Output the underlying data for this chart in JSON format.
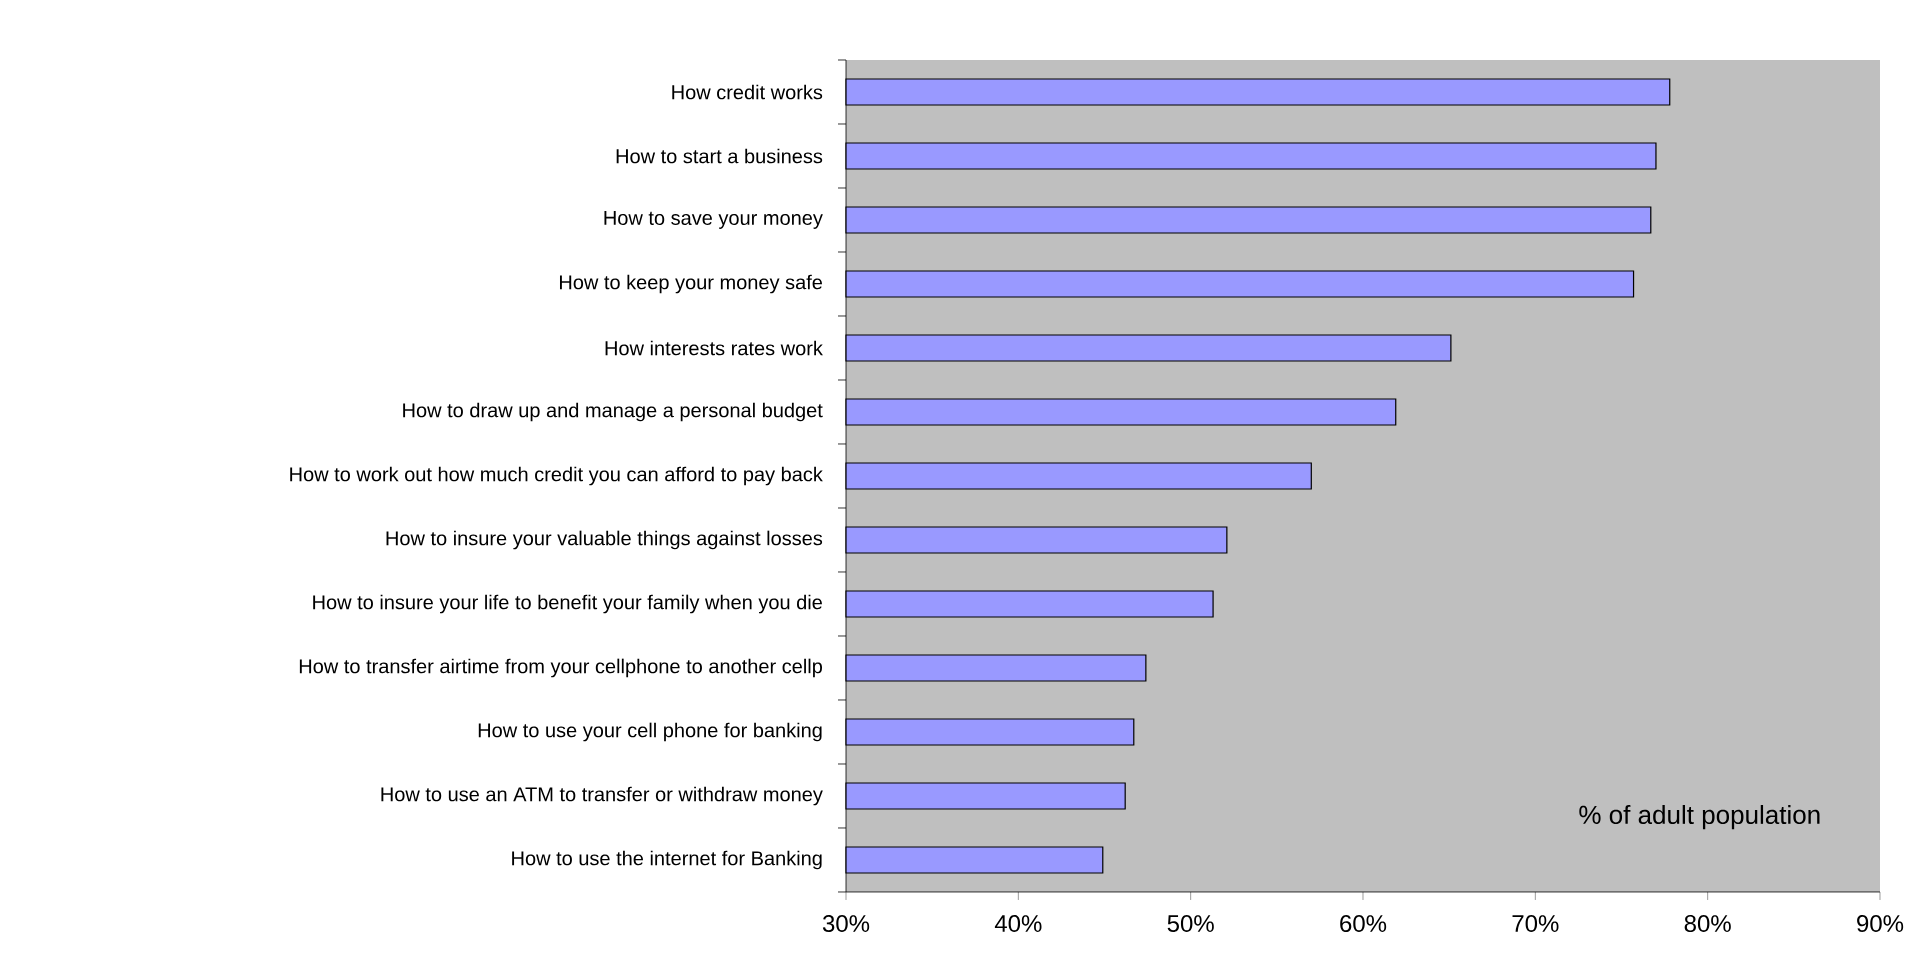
{
  "chart_data": {
    "type": "bar",
    "orientation": "horizontal",
    "categories": [
      "How credit works",
      "How to start a business",
      "How to save your money",
      "How to keep your money safe",
      "How interests rates work",
      "How to draw up and manage a personal budget",
      "How to work out how much credit you can afford to pay back",
      "How to insure your valuable things against losses",
      "How to insure your life to benefit your family when you die",
      "How to transfer airtime from your cellphone to another cellp",
      "How to use your cell phone for banking",
      "How to use an ATM to transfer or withdraw money",
      "How to use the internet for Banking"
    ],
    "values": [
      77.8,
      77.0,
      76.7,
      75.7,
      65.1,
      61.9,
      57.0,
      52.1,
      51.3,
      47.4,
      46.7,
      46.2,
      44.9
    ],
    "color": "#9999ff",
    "xlim": [
      30,
      90
    ],
    "xticks": [
      {
        "value": 30,
        "label": "30%"
      },
      {
        "value": 40,
        "label": "40%"
      },
      {
        "value": 50,
        "label": "50%"
      },
      {
        "value": 60,
        "label": "60%"
      },
      {
        "value": 70,
        "label": "70%"
      },
      {
        "value": 80,
        "label": "80%"
      },
      {
        "value": 90,
        "label": "90%"
      }
    ],
    "annotations": [
      "% of adult population"
    ],
    "grid": false
  }
}
